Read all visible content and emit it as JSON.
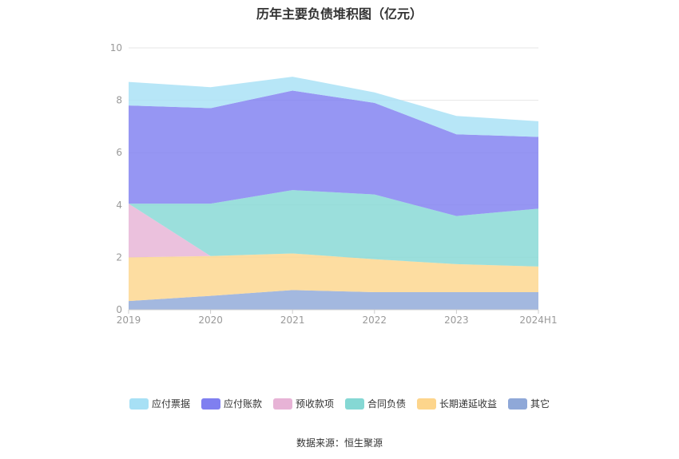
{
  "chart_data": {
    "type": "area",
    "stacked": true,
    "title": "历年主要负债堆积图（亿元）",
    "categories": [
      "2019",
      "2020",
      "2021",
      "2022",
      "2023",
      "2024H1"
    ],
    "ylim": [
      0,
      10
    ],
    "yticks": [
      0,
      2,
      4,
      6,
      8,
      10
    ],
    "grid": true,
    "legend_position": "bottom",
    "series": [
      {
        "name": "其它",
        "color": "#8fa8d8",
        "values": [
          0.33,
          0.53,
          0.75,
          0.67,
          0.67,
          0.67
        ]
      },
      {
        "name": "长期递延收益",
        "color": "#fdd58c",
        "values": [
          1.67,
          1.52,
          1.4,
          1.26,
          1.07,
          0.98
        ]
      },
      {
        "name": "预收款项",
        "color": "#e7b3d6",
        "values": [
          2.05,
          0,
          0,
          0,
          0,
          0
        ]
      },
      {
        "name": "合同负债",
        "color": "#85d8d4",
        "values": [
          0,
          2.0,
          2.42,
          2.47,
          1.84,
          2.21
        ]
      },
      {
        "name": "长期递延收益",
        "color": "#fdd58c",
        "values": [
          0,
          0,
          0,
          0,
          0,
          0
        ]
      },
      {
        "name": "应付账款",
        "color": "#7f7ff0",
        "values": [
          3.75,
          3.65,
          3.8,
          3.5,
          3.12,
          2.74
        ]
      },
      {
        "name": "应付票据",
        "color": "#a7e0f5",
        "values": [
          0.9,
          0.8,
          0.53,
          0.4,
          0.7,
          0.6
        ]
      }
    ],
    "legend": [
      {
        "name": "应付票据",
        "color": "#a7e0f5"
      },
      {
        "name": "应付账款",
        "color": "#7f7ff0"
      },
      {
        "name": "预收款项",
        "color": "#e7b3d6"
      },
      {
        "name": "合同负债",
        "color": "#85d8d4"
      },
      {
        "name": "长期递延收益",
        "color": "#fdd58c"
      },
      {
        "name": "其它",
        "color": "#8fa8d8"
      }
    ]
  },
  "source": "数据来源：恒生聚源"
}
